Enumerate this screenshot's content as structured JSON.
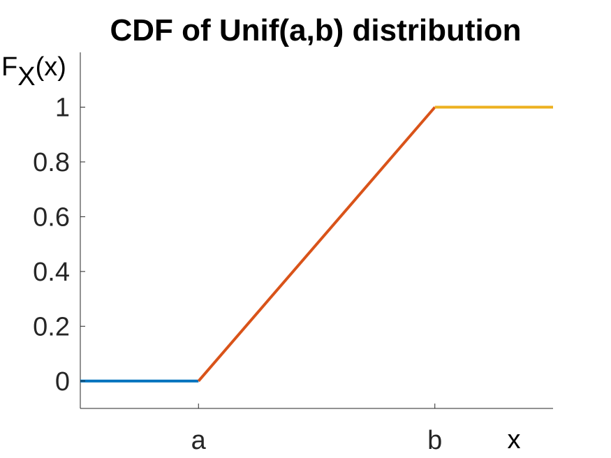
{
  "chart_data": {
    "type": "line",
    "title": "CDF of Unif(a,b) distribution",
    "xlabel": "x",
    "ylabel": {
      "main": "F",
      "subscript": "X",
      "suffix": "(x)"
    },
    "xlim": [
      -1,
      3
    ],
    "ylim": [
      -0.1,
      1.2
    ],
    "xticks": [
      {
        "value": 0,
        "label": "a"
      },
      {
        "value": 2,
        "label": "b"
      }
    ],
    "yticks": [
      {
        "value": 0,
        "label": "0"
      },
      {
        "value": 0.2,
        "label": "0.2"
      },
      {
        "value": 0.4,
        "label": "0.4"
      },
      {
        "value": 0.6,
        "label": "0.6"
      },
      {
        "value": 0.8,
        "label": "0.8"
      },
      {
        "value": 1,
        "label": "1"
      }
    ],
    "grid": false,
    "box": false,
    "series": [
      {
        "color": "#0072BD",
        "x": [
          -1,
          0
        ],
        "y": [
          0,
          0
        ]
      },
      {
        "color": "#D95319",
        "x": [
          0,
          2
        ],
        "y": [
          0,
          1
        ]
      },
      {
        "color": "#EDB120",
        "x": [
          2,
          3
        ],
        "y": [
          1,
          1
        ]
      }
    ]
  }
}
